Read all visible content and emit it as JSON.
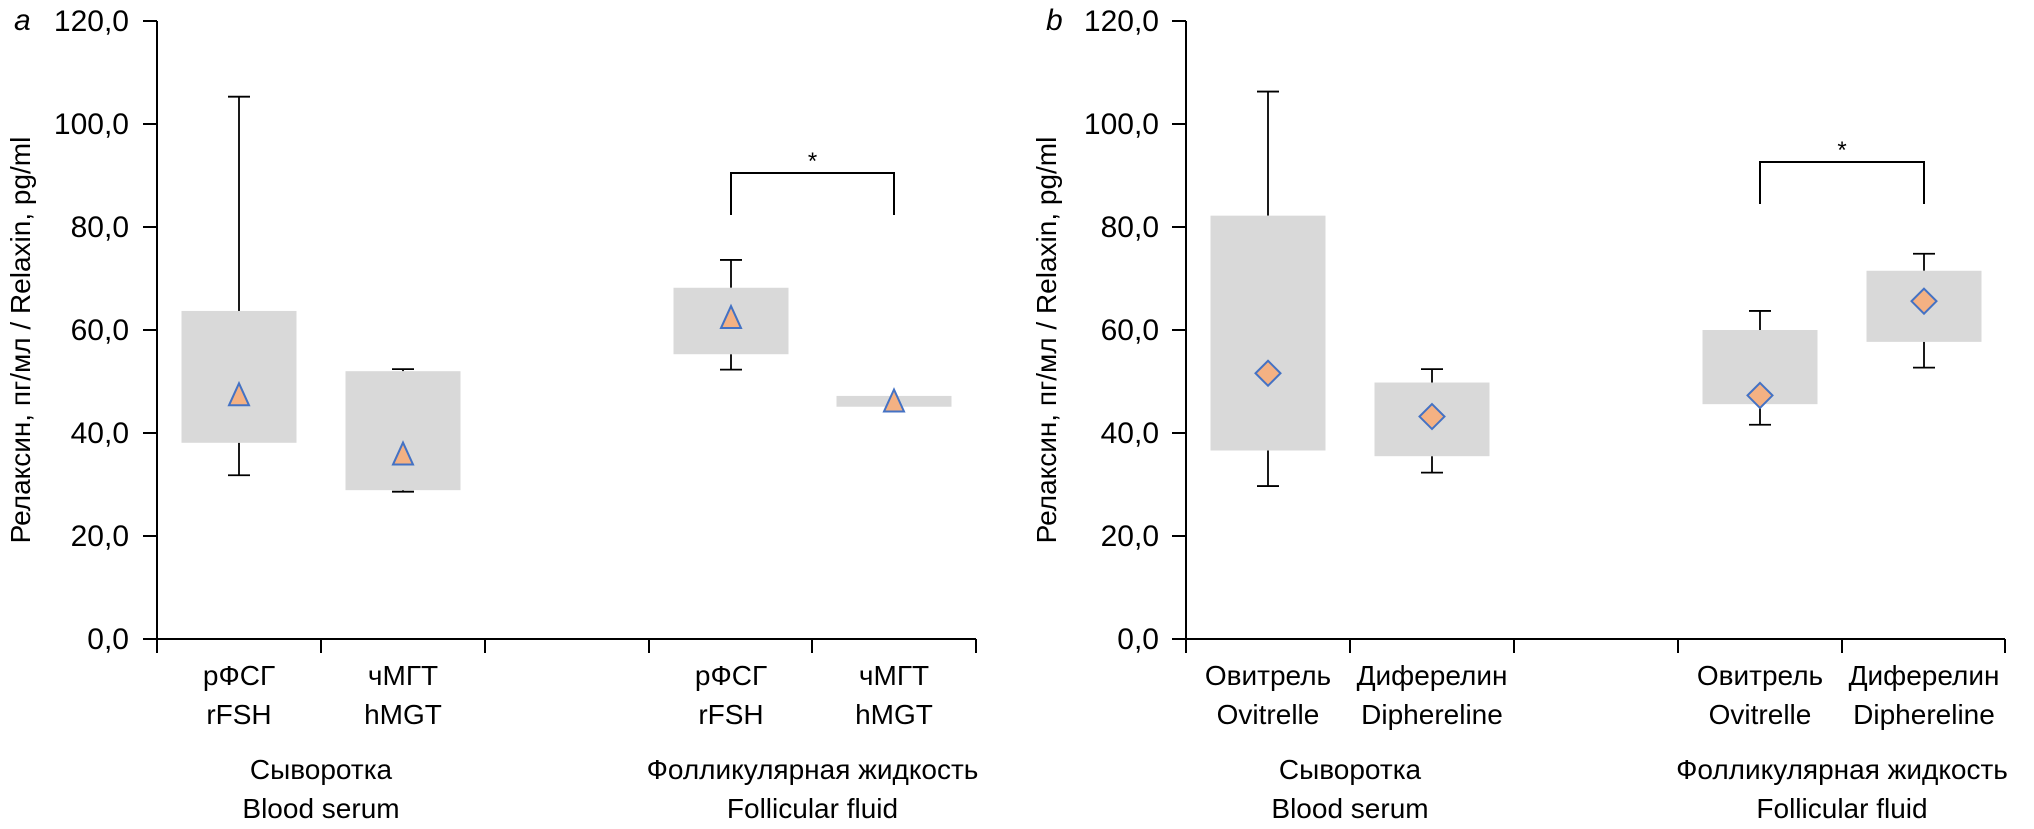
{
  "chart_data": [
    {
      "type": "box",
      "panel_letter": "a",
      "ylabel": "Релаксин, пг/мл / Relaxin, pg/ml",
      "ylim": [
        0,
        120
      ],
      "yticks": [
        "0,0",
        "20,0",
        "40,0",
        "60,0",
        "80,0",
        "100,0",
        "120,0"
      ],
      "ytick_values": [
        0,
        20,
        40,
        60,
        80,
        100,
        120
      ],
      "grid": false,
      "marker_shape": "triangle",
      "colors": {
        "box": "#D9D9D9",
        "marker_fill": "#F4B183",
        "marker_stroke": "#4472C4",
        "line": "#000000"
      },
      "groups": [
        {
          "label_ru": "Сыворотка",
          "label_en": "Blood serum",
          "categories": [
            {
              "label_ru": "рФСГ",
              "label_en": "rFSH",
              "whisker_low": 31.8,
              "q1": 38.1,
              "q3": 63.7,
              "whisker_high": 105.3,
              "marker": 47.0
            },
            {
              "label_ru": "чМГТ",
              "label_en": "hMGT",
              "whisker_low": 28.6,
              "q1": 28.9,
              "q3": 52.0,
              "whisker_high": 52.4,
              "marker": 35.5
            }
          ]
        },
        {
          "label_ru": "Фолликулярная жидкость",
          "label_en": "Follicular fluid",
          "categories": [
            {
              "label_ru": "рФСГ",
              "label_en": "rFSH",
              "whisker_low": 52.3,
              "q1": 55.3,
              "q3": 68.2,
              "whisker_high": 73.6,
              "marker": 62.0
            },
            {
              "label_ru": "чМГТ",
              "label_en": "hMGT",
              "whisker_low": null,
              "q1": 45.1,
              "q3": 47.2,
              "whisker_high": null,
              "marker": 45.8
            }
          ],
          "significance": {
            "label": "*",
            "between": [
              0,
              1
            ],
            "level": 84
          }
        }
      ]
    },
    {
      "type": "box",
      "panel_letter": "b",
      "ylabel": "Релаксин, пг/мл / Relaxin, pg/ml",
      "ylim": [
        0,
        120
      ],
      "yticks": [
        "0,0",
        "20,0",
        "40,0",
        "60,0",
        "80,0",
        "100,0",
        "120,0"
      ],
      "ytick_values": [
        0,
        20,
        40,
        60,
        80,
        100,
        120
      ],
      "grid": false,
      "marker_shape": "diamond",
      "colors": {
        "box": "#D9D9D9",
        "marker_fill": "#F4B183",
        "marker_stroke": "#4472C4",
        "line": "#000000"
      },
      "groups": [
        {
          "label_ru": "Сыворотка",
          "label_en": "Blood serum",
          "categories": [
            {
              "label_ru": "Овитрель",
              "label_en": "Ovitrelle",
              "whisker_low": 29.7,
              "q1": 36.6,
              "q3": 82.2,
              "whisker_high": 106.3,
              "marker": 51.6
            },
            {
              "label_ru": "Диферелин",
              "label_en": "Diphereline",
              "whisker_low": 32.3,
              "q1": 35.5,
              "q3": 49.8,
              "whisker_high": 52.4,
              "marker": 43.2
            }
          ]
        },
        {
          "label_ru": "Фолликулярная жидкость",
          "label_en": "Follicular fluid",
          "categories": [
            {
              "label_ru": "Овитрель",
              "label_en": "Ovitrelle",
              "whisker_low": 41.6,
              "q1": 45.6,
              "q3": 60.0,
              "whisker_high": 63.7,
              "marker": 47.3
            },
            {
              "label_ru": "Диферелин",
              "label_en": "Diphereline",
              "whisker_low": 52.7,
              "q1": 57.7,
              "q3": 71.5,
              "whisker_high": 74.8,
              "marker": 65.6
            }
          ],
          "significance": {
            "label": "*",
            "between": [
              0,
              1
            ],
            "level": 86
          }
        }
      ]
    }
  ]
}
